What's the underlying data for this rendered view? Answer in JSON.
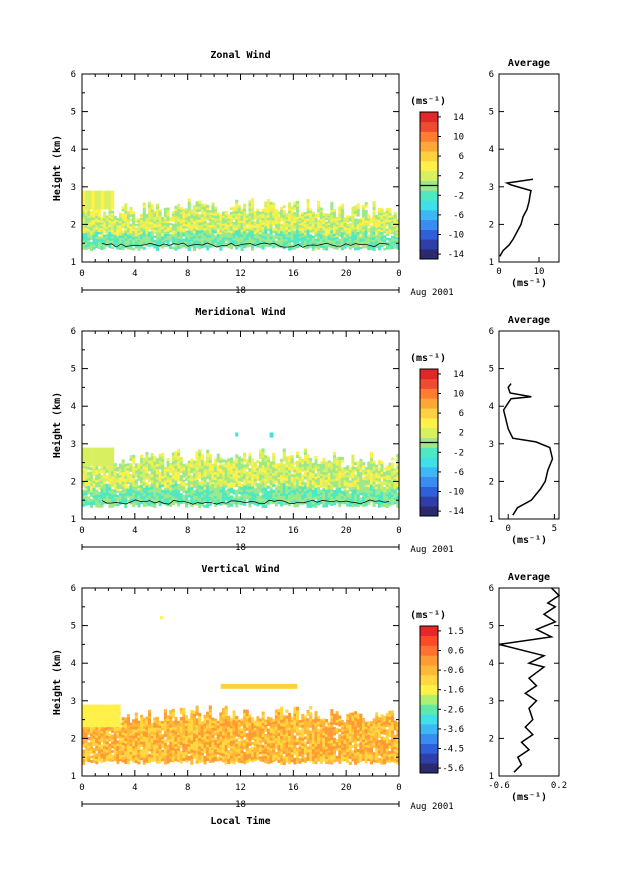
{
  "figure": {
    "date_label": "Aug 2001",
    "day_label": "18",
    "time_axis_label": "Local Time",
    "height_axis_label": "Height (km)",
    "unit_label": "(ms⁻¹)",
    "average_title": "Average"
  },
  "chart_data": [
    {
      "type": "heatmap",
      "title": "Zonal Wind",
      "xlabel": "",
      "ylabel": "Height (km)",
      "xlim": [
        0,
        24
      ],
      "ylim": [
        1,
        6
      ],
      "x_ticks": [
        "0",
        "4",
        "8",
        "12",
        "16",
        "20",
        "0"
      ],
      "y_ticks": [
        "1",
        "2",
        "3",
        "4",
        "5",
        "6"
      ],
      "colorbar": {
        "unit": "(ms⁻¹)",
        "range": [
          -16,
          16
        ],
        "tick_labels": [
          "14",
          "10",
          "6",
          "2",
          "-2",
          "-6",
          "-10",
          "-14"
        ],
        "zero_line": 0
      },
      "valid_layer_km": [
        1.3,
        2.3
      ],
      "average_profile": {
        "title": "Average",
        "xlabel": "(ms⁻¹)",
        "xlim": [
          0,
          15
        ],
        "x_ticks": [
          "0",
          "10"
        ],
        "points": [
          [
            0.2,
            1.15
          ],
          [
            1,
            1.3
          ],
          [
            2.5,
            1.45
          ],
          [
            3.5,
            1.6
          ],
          [
            4.5,
            1.8
          ],
          [
            5.5,
            2.0
          ],
          [
            6,
            2.2
          ],
          [
            7,
            2.4
          ],
          [
            7.5,
            2.6
          ],
          [
            7.8,
            2.8
          ],
          [
            8,
            2.9
          ],
          [
            3,
            3.05
          ],
          [
            2,
            3.1
          ],
          [
            8.5,
            3.2
          ]
        ]
      }
    },
    {
      "type": "heatmap",
      "title": "Meridional Wind",
      "xlabel": "",
      "ylabel": "Height (km)",
      "xlim": [
        0,
        24
      ],
      "ylim": [
        1,
        6
      ],
      "x_ticks": [
        "0",
        "4",
        "8",
        "12",
        "16",
        "20",
        "0"
      ],
      "y_ticks": [
        "1",
        "2",
        "3",
        "4",
        "5",
        "6"
      ],
      "colorbar": {
        "unit": "(ms⁻¹)",
        "range": [
          -16,
          16
        ],
        "tick_labels": [
          "14",
          "10",
          "6",
          "2",
          "-2",
          "-6",
          "-10",
          "-14"
        ],
        "zero_line": 0
      },
      "valid_layer_km": [
        1.3,
        2.5
      ],
      "average_profile": {
        "title": "Average",
        "xlabel": "(ms⁻¹)",
        "xlim": [
          -1,
          5.5
        ],
        "x_ticks": [
          "0",
          "5"
        ],
        "points": [
          [
            0.5,
            1.1
          ],
          [
            1,
            1.3
          ],
          [
            2.5,
            1.5
          ],
          [
            3.5,
            1.8
          ],
          [
            4,
            2.0
          ],
          [
            4.3,
            2.3
          ],
          [
            4.8,
            2.6
          ],
          [
            4.5,
            2.9
          ],
          [
            3,
            3.05
          ],
          [
            0.5,
            3.15
          ],
          [
            0,
            3.4
          ],
          [
            -0.5,
            3.9
          ],
          [
            0.3,
            4.2
          ],
          [
            2.5,
            4.25
          ],
          [
            0.2,
            4.35
          ],
          [
            0,
            4.5
          ],
          [
            0.3,
            4.6
          ]
        ]
      }
    },
    {
      "type": "heatmap",
      "title": "Vertical Wind",
      "xlabel": "Local Time",
      "ylabel": "Height (km)",
      "xlim": [
        0,
        24
      ],
      "ylim": [
        1,
        6
      ],
      "x_ticks": [
        "0",
        "4",
        "8",
        "12",
        "16",
        "20",
        "0"
      ],
      "y_ticks": [
        "1",
        "2",
        "3",
        "4",
        "5",
        "6"
      ],
      "colorbar": {
        "unit": "(ms⁻¹)",
        "range": [
          -6,
          2
        ],
        "tick_labels": [
          "1.5",
          "0.6",
          "-0.6",
          "-1.6",
          "-2.6",
          "-3.6",
          "-4.5",
          "-5.6"
        ]
      },
      "valid_layer_km": [
        1.3,
        2.5
      ],
      "average_profile": {
        "title": "Average",
        "xlabel": "(ms⁻¹)",
        "xlim": [
          -0.6,
          0.2
        ],
        "x_ticks": [
          "-0.6",
          "0.2"
        ],
        "points": [
          [
            -0.4,
            1.1
          ],
          [
            -0.3,
            1.3
          ],
          [
            -0.35,
            1.5
          ],
          [
            -0.2,
            1.7
          ],
          [
            -0.3,
            1.9
          ],
          [
            -0.15,
            2.1
          ],
          [
            -0.25,
            2.3
          ],
          [
            -0.15,
            2.5
          ],
          [
            -0.2,
            2.8
          ],
          [
            -0.1,
            3.0
          ],
          [
            -0.25,
            3.2
          ],
          [
            -0.1,
            3.4
          ],
          [
            -0.2,
            3.6
          ],
          [
            0,
            3.9
          ],
          [
            -0.2,
            4.0
          ],
          [
            0,
            4.2
          ],
          [
            -0.6,
            4.5
          ],
          [
            0.1,
            4.7
          ],
          [
            -0.1,
            4.9
          ],
          [
            0.15,
            5.1
          ],
          [
            0.0,
            5.3
          ],
          [
            0.15,
            5.5
          ],
          [
            0.05,
            5.6
          ],
          [
            0.2,
            5.8
          ],
          [
            0.1,
            6.0
          ]
        ]
      }
    }
  ]
}
